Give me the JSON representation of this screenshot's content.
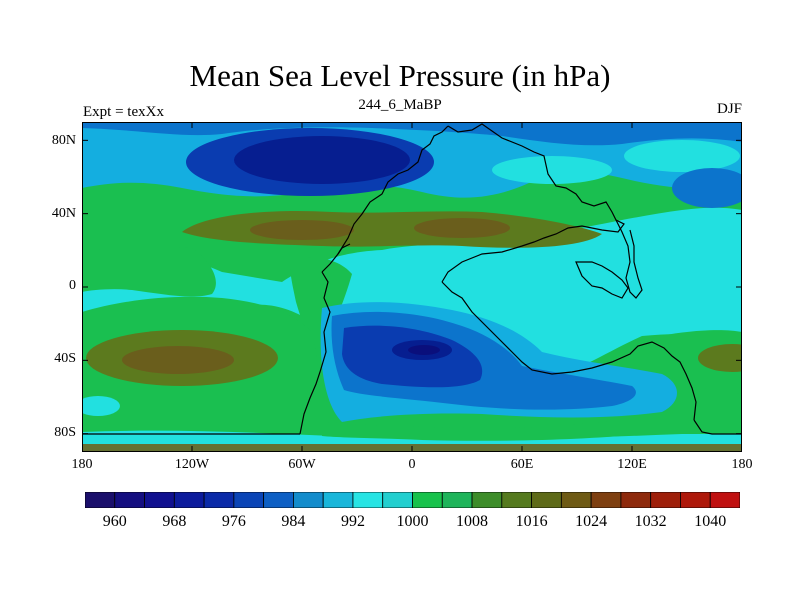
{
  "title": "Mean Sea Level Pressure (in hPa)",
  "left_label": "Expt = texXx",
  "center_label": "244_6_MaBP",
  "right_label": "DJF",
  "lat_ticks": [
    {
      "label": "80N",
      "value": 80
    },
    {
      "label": "40N",
      "value": 40
    },
    {
      "label": "0",
      "value": 0
    },
    {
      "label": "40S",
      "value": -40
    },
    {
      "label": "80S",
      "value": -80
    }
  ],
  "lon_ticks": [
    {
      "label": "180",
      "value": -180
    },
    {
      "label": "120W",
      "value": -120
    },
    {
      "label": "60W",
      "value": -60
    },
    {
      "label": "0",
      "value": 0
    },
    {
      "label": "60E",
      "value": 60
    },
    {
      "label": "120E",
      "value": 120
    },
    {
      "label": "180",
      "value": 180
    }
  ],
  "colorbar": {
    "colors": [
      "#1a0f6b",
      "#140e80",
      "#10108f",
      "#0c1b9c",
      "#0a2aa8",
      "#0a44b6",
      "#0d5fc4",
      "#138ccc",
      "#19b6da",
      "#27e4e4",
      "#22cfcf",
      "#18c24c",
      "#1eb45a",
      "#3d8d2a",
      "#557a1e",
      "#5e6a18",
      "#6e5a14",
      "#7e3f10",
      "#8e2a0c",
      "#9e1f0a",
      "#ae180a",
      "#c01010"
    ],
    "labels": [
      "960",
      "968",
      "976",
      "984",
      "992",
      "1000",
      "1008",
      "1016",
      "1024",
      "1032",
      "1040"
    ]
  },
  "map_colors": {
    "ocean": "#1abf50",
    "cyan": "#22e0e0",
    "light_blue": "#14aee0",
    "mid_blue": "#0c74cc",
    "blue": "#0a3cb0",
    "deep_blue": "#061e90",
    "darkest_blue": "#0a0f7c",
    "olive": "#5c7a1e",
    "olive_dark": "#6a5e1c",
    "green_dark": "#2a9b34",
    "coast": "#000000"
  }
}
